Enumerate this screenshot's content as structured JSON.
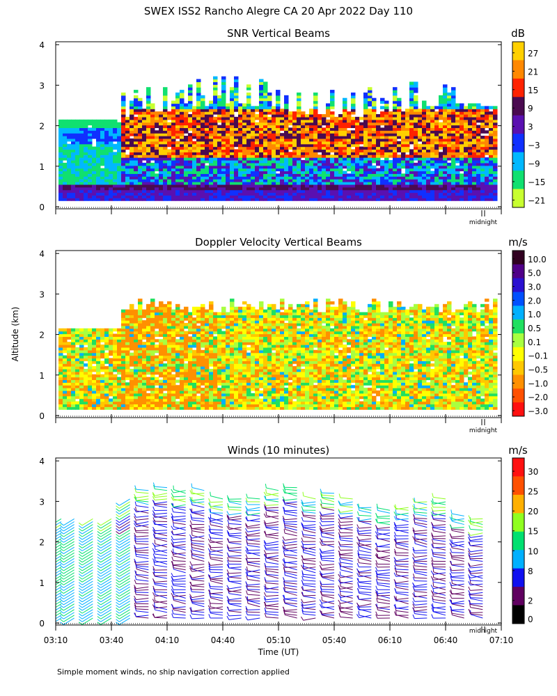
{
  "figure": {
    "title": "SWEX ISS2 Rancho Alegre CA  20 Apr 2022 Day 110",
    "ylabel": "Altitude (km)",
    "xlabel": "Time (UT)",
    "footnote": "Simple moment winds, no ship navigation correction applied",
    "midnight_label": "midnight"
  },
  "chart_data": [
    {
      "type": "heatmap",
      "title": "SNR Vertical Beams",
      "colorbar_unit": "dB",
      "colorbar_labels": [
        "27",
        "21",
        "15",
        "9",
        "3",
        "−3",
        "−9",
        "−15",
        "−21"
      ],
      "colorbar_colors": [
        "#ffd000",
        "#ff8800",
        "#ff2200",
        "#4a0a50",
        "#5a10b0",
        "#1030ff",
        "#00b8ff",
        "#10e070",
        "#c8ff30"
      ],
      "y_ticks": [
        "0",
        "1",
        "2",
        "3",
        "4"
      ],
      "ylim": [
        0,
        4
      ],
      "x_ticks": [],
      "xlim_hours": [
        3.1667,
        7.1667
      ],
      "regions": [
        {
          "t0": 3.17,
          "t1": 3.75,
          "alt_top": 2.1
        },
        {
          "t0": 3.75,
          "t1": 6.9,
          "alt_top": 2.4
        },
        {
          "t0": 3.75,
          "t1": 6.7,
          "alt_top": 3.1,
          "note": "patchy"
        }
      ]
    },
    {
      "type": "heatmap",
      "title": "Doppler Velocity Vertical Beams",
      "colorbar_unit": "m/s",
      "colorbar_labels": [
        "10.0",
        "5.0",
        "3.0",
        "2.0",
        "1.0",
        "0.5",
        "0.1",
        "−0.1",
        "−0.5",
        "−1.0",
        "−2.0",
        "−3.0"
      ],
      "colorbar_colors": [
        "#300020",
        "#500088",
        "#2a10d0",
        "#0050ff",
        "#00b0ff",
        "#20e060",
        "#a8ff40",
        "#ffff00",
        "#ffc800",
        "#ff9000",
        "#ff5000",
        "#ff1010"
      ],
      "y_ticks": [
        "0",
        "1",
        "2",
        "3",
        "4"
      ],
      "ylim": [
        0,
        4
      ],
      "x_ticks": [],
      "xlim_hours": [
        3.1667,
        7.1667
      ]
    },
    {
      "type": "barbs",
      "title": "Winds (10 minutes)",
      "colorbar_unit": "m/s",
      "colorbar_labels": [
        "30",
        "25",
        "20",
        "15",
        "10",
        "8",
        "2",
        "0"
      ],
      "colorbar_colors": [
        "#ff1010",
        "#ff5000",
        "#ffb000",
        "#90ff20",
        "#00e070",
        "#00b0ff",
        "#1010f0",
        "#600060",
        "#000000"
      ],
      "y_ticks": [
        "0",
        "1",
        "2",
        "3",
        "4"
      ],
      "ylim": [
        0,
        4
      ],
      "x_ticks": [
        "03:10",
        "03:40",
        "04:10",
        "04:40",
        "05:10",
        "05:40",
        "06:10",
        "06:40",
        "07:10"
      ],
      "xlim_hours": [
        3.1667,
        7.1667
      ],
      "profile_times": [
        "03:10",
        "03:20",
        "03:30",
        "03:40",
        "03:50",
        "04:00",
        "04:10",
        "04:20",
        "04:30",
        "04:40",
        "04:50",
        "05:00",
        "05:10",
        "05:20",
        "05:30",
        "05:40",
        "05:50",
        "06:00",
        "06:10",
        "06:20",
        "06:30",
        "06:40",
        "06:50",
        "07:00"
      ],
      "profile_tops_km": [
        2.6,
        2.6,
        2.6,
        2.6,
        3.1,
        3.3,
        3.4,
        3.3,
        3.3,
        3.1,
        3.1,
        3.1,
        3.3,
        3.4,
        3.1,
        3.2,
        3.1,
        2.9,
        2.8,
        2.9,
        3.0,
        3.1,
        2.7,
        2.6
      ]
    }
  ]
}
